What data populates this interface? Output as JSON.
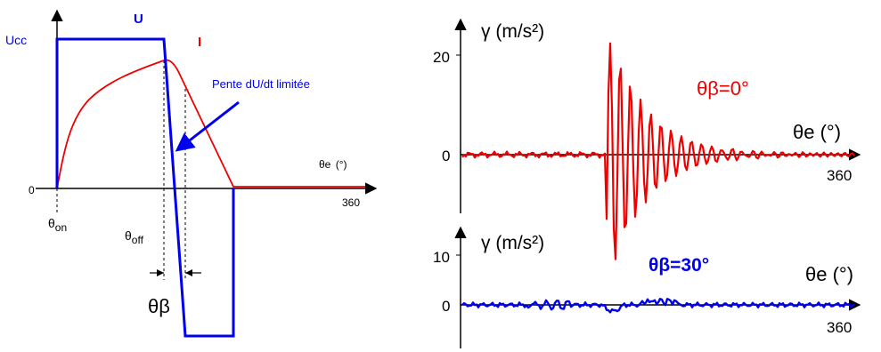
{
  "left_diagram": {
    "voltage_level_label": "Ucc",
    "voltage_label": "U",
    "current_label": "I",
    "zero_label": "0",
    "axis_label_prefix": "θe",
    "axis_label_unit": "(°)",
    "axis_end_label": "360",
    "theta_on_prefix": "θ",
    "theta_on_sub": "on",
    "theta_off_prefix": "θ",
    "theta_off_sub": "off",
    "theta_beta_label": "θβ",
    "annotation": "Pente dU/dt limitée"
  },
  "right_top": {
    "y_label": "γ (m/s²)",
    "tick_20": "20",
    "tick_0": "0",
    "angle_label": "θβ=0°",
    "x_label": "θe (°)",
    "x_end": "360"
  },
  "right_bottom": {
    "y_label": "γ (m/s²)",
    "tick_10": "10",
    "tick_0": "0",
    "angle_label": "θβ=30°",
    "x_label": "θe (°)",
    "x_end": "360"
  },
  "colors": {
    "voltage": "#0000ee",
    "current": "#ee0000",
    "axis": "#000000"
  }
}
